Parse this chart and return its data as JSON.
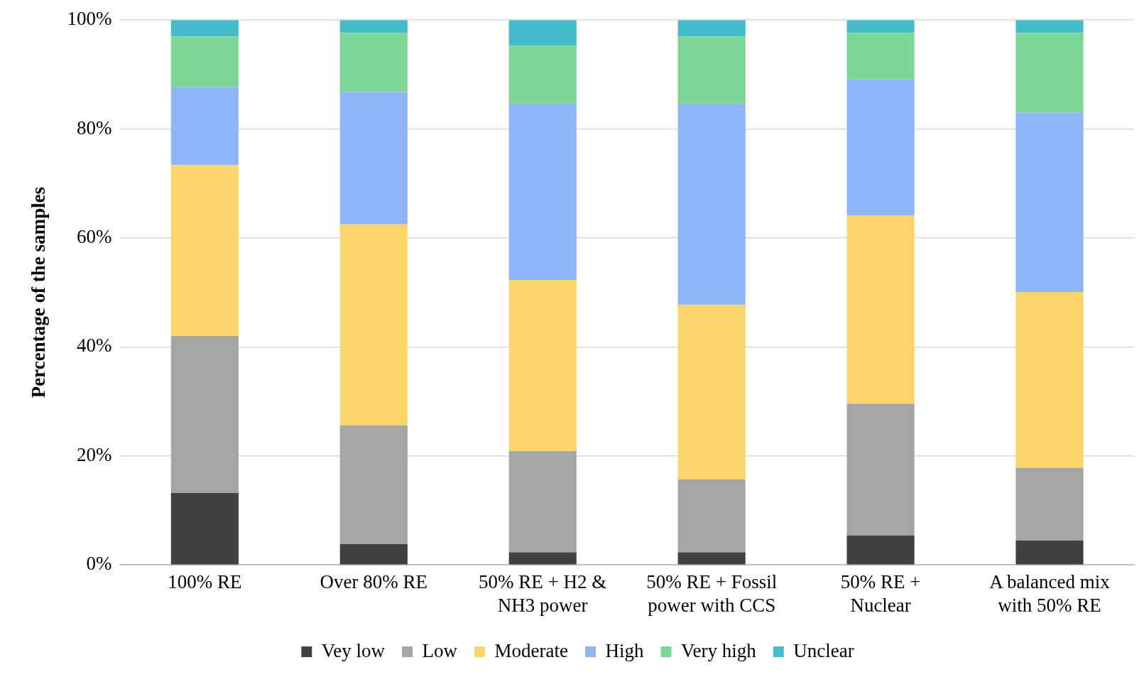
{
  "chart_data": {
    "type": "bar",
    "stacked": true,
    "ylabel": "Percentage of the samples",
    "categories": [
      "100% RE",
      "Over 80% RE",
      "50% RE + H2 & NH3 power",
      "50% RE + Fossil power with CCS",
      "50% RE + Nuclear",
      "A balanced mix with 50% RE"
    ],
    "series": [
      {
        "name": "Vey low",
        "color": "#404040",
        "values": [
          13.2,
          3.8,
          2.3,
          2.3,
          5.4,
          4.5
        ]
      },
      {
        "name": "Low",
        "color": "#a5a5a5",
        "values": [
          28.8,
          21.8,
          18.6,
          13.4,
          24.2,
          13.3
        ]
      },
      {
        "name": "Moderate",
        "color": "#fcd66a",
        "values": [
          31.4,
          36.9,
          31.4,
          32.0,
          34.5,
          32.3
        ]
      },
      {
        "name": "High",
        "color": "#8eb4f9",
        "values": [
          14.3,
          24.3,
          32.3,
          36.9,
          25.0,
          32.9
        ]
      },
      {
        "name": "Very high",
        "color": "#7dd794",
        "values": [
          9.3,
          10.8,
          10.7,
          12.4,
          8.5,
          14.6
        ]
      },
      {
        "name": "Unclear",
        "color": "#45bcca",
        "values": [
          3.0,
          2.4,
          4.7,
          3.0,
          2.4,
          2.4
        ]
      }
    ],
    "ylim": [
      0,
      100
    ],
    "yticks": [
      {
        "value": 0,
        "label": "0%"
      },
      {
        "value": 20,
        "label": "20%"
      },
      {
        "value": 40,
        "label": "40%"
      },
      {
        "value": 60,
        "label": "60%"
      },
      {
        "value": 80,
        "label": "80%"
      },
      {
        "value": 100,
        "label": "100%"
      }
    ],
    "grid": "y",
    "legend": "bottom"
  }
}
